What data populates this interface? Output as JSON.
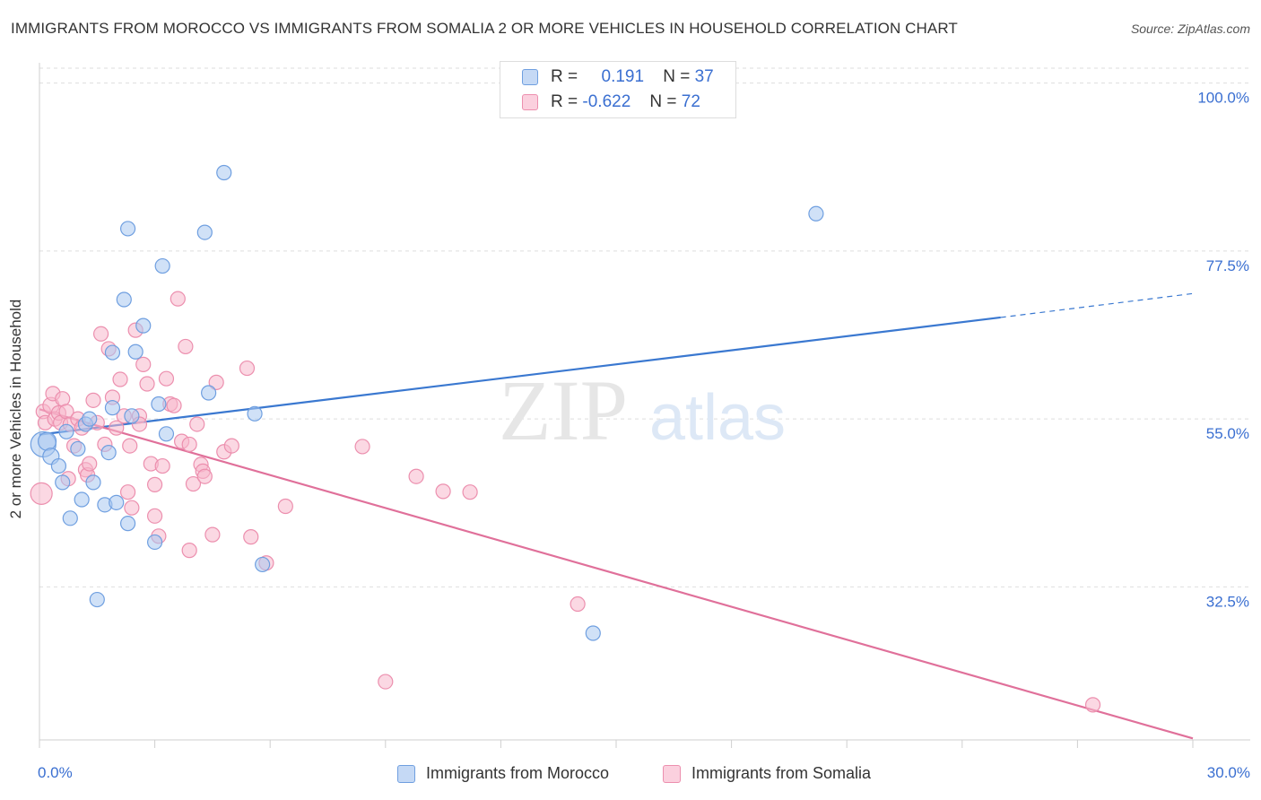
{
  "header": {
    "title": "IMMIGRANTS FROM MOROCCO VS IMMIGRANTS FROM SOMALIA 2 OR MORE VEHICLES IN HOUSEHOLD CORRELATION CHART",
    "source": "Source: ZipAtlas.com"
  },
  "watermark": {
    "zip": "ZIP",
    "atlas": "atlas"
  },
  "legend": {
    "morocco": {
      "r_label": "R =",
      "r_value": "0.191",
      "n_label": "N =",
      "n_value": "37"
    },
    "somalia": {
      "r_label": "R =",
      "r_value": "-0.622",
      "n_label": "N =",
      "n_value": "72"
    }
  },
  "colors": {
    "morocco_fill": "#aac8f0",
    "morocco_stroke": "#6f9fe0",
    "morocco_line": "#3a78d0",
    "somalia_fill": "#f7b8cc",
    "somalia_stroke": "#ec8fae",
    "somalia_line": "#e0709a",
    "axis_text": "#3a6fd1"
  },
  "chart_data": {
    "type": "scatter",
    "title": "IMMIGRANTS FROM MOROCCO VS IMMIGRANTS FROM SOMALIA 2 OR MORE VEHICLES IN HOUSEHOLD CORRELATION CHART",
    "xlabel": "",
    "ylabel": "2 or more Vehicles in Household",
    "xlim": [
      0,
      30
    ],
    "ylim": [
      12,
      102
    ],
    "x_tick_labels": [
      "0.0%",
      "30.0%"
    ],
    "y_ticks": [
      32.5,
      55.0,
      77.5,
      100.0
    ],
    "y_tick_labels": [
      "32.5%",
      "55.0%",
      "77.5%",
      "100.0%"
    ],
    "grid": true,
    "legend_position": "bottom",
    "series": [
      {
        "name": "Immigrants from Morocco",
        "r": 0.191,
        "n": 37,
        "trend": {
          "x0": 0,
          "y0": 52.9,
          "x1": 25.0,
          "y1": 68.6,
          "dash_to_x": 30.0,
          "dash_to_y": 71.8
        },
        "points": [
          [
            0.1,
            51.6,
            12
          ],
          [
            0.2,
            52.0,
            8
          ],
          [
            0.3,
            50.0,
            7
          ],
          [
            0.5,
            48.7,
            6
          ],
          [
            0.6,
            46.5,
            6
          ],
          [
            0.7,
            53.3,
            6
          ],
          [
            0.8,
            41.7,
            6
          ],
          [
            1.0,
            51.0,
            6
          ],
          [
            1.1,
            44.2,
            6
          ],
          [
            1.2,
            54.3,
            6
          ],
          [
            1.3,
            55.0,
            6
          ],
          [
            1.4,
            46.5,
            6
          ],
          [
            1.5,
            30.8,
            6
          ],
          [
            1.7,
            43.5,
            6
          ],
          [
            1.8,
            50.5,
            6
          ],
          [
            1.9,
            56.5,
            6
          ],
          [
            2.0,
            43.8,
            6
          ],
          [
            1.9,
            63.9,
            6
          ],
          [
            2.2,
            71.0,
            6
          ],
          [
            2.3,
            80.5,
            6
          ],
          [
            2.3,
            41.0,
            6
          ],
          [
            2.4,
            55.4,
            6
          ],
          [
            2.5,
            64.0,
            6
          ],
          [
            2.7,
            67.5,
            6
          ],
          [
            3.0,
            38.5,
            6
          ],
          [
            3.2,
            75.5,
            6
          ],
          [
            3.3,
            53.0,
            6
          ],
          [
            3.1,
            57.0,
            6
          ],
          [
            4.3,
            80.0,
            6
          ],
          [
            4.4,
            58.5,
            6
          ],
          [
            4.8,
            88.0,
            6
          ],
          [
            5.6,
            55.7,
            6
          ],
          [
            5.8,
            35.5,
            6
          ],
          [
            14.4,
            26.3,
            6
          ],
          [
            20.2,
            82.5,
            6
          ]
        ]
      },
      {
        "name": "Immigrants from Somalia",
        "r": -0.622,
        "n": 72,
        "trend": {
          "x0": 0,
          "y0": 56.3,
          "x1": 30.0,
          "y1": 12.2
        },
        "points": [
          [
            0.05,
            45.0,
            10
          ],
          [
            0.1,
            56.0,
            6
          ],
          [
            0.15,
            54.5,
            6
          ],
          [
            0.3,
            56.8,
            7
          ],
          [
            0.35,
            58.4,
            6
          ],
          [
            0.4,
            55.0,
            6
          ],
          [
            0.5,
            55.8,
            6
          ],
          [
            0.55,
            54.5,
            6
          ],
          [
            0.6,
            57.7,
            6
          ],
          [
            0.7,
            56.0,
            6
          ],
          [
            0.75,
            47.0,
            6
          ],
          [
            0.8,
            54.3,
            6
          ],
          [
            0.9,
            51.4,
            6
          ],
          [
            1.0,
            55.0,
            6
          ],
          [
            1.1,
            53.8,
            6
          ],
          [
            1.2,
            48.2,
            6
          ],
          [
            1.25,
            47.5,
            6
          ],
          [
            1.3,
            49.0,
            6
          ],
          [
            1.4,
            57.5,
            6
          ],
          [
            1.5,
            54.5,
            6
          ],
          [
            1.6,
            66.4,
            6
          ],
          [
            1.7,
            51.6,
            6
          ],
          [
            1.8,
            64.4,
            6
          ],
          [
            1.9,
            57.9,
            6
          ],
          [
            2.0,
            53.8,
            6
          ],
          [
            2.1,
            60.3,
            6
          ],
          [
            2.2,
            55.4,
            6
          ],
          [
            2.3,
            45.2,
            6
          ],
          [
            2.35,
            51.4,
            6
          ],
          [
            2.4,
            43.1,
            6
          ],
          [
            2.5,
            66.9,
            6
          ],
          [
            2.6,
            55.4,
            6
          ],
          [
            2.6,
            54.3,
            6
          ],
          [
            2.7,
            62.3,
            6
          ],
          [
            2.8,
            59.7,
            6
          ],
          [
            2.9,
            49.0,
            6
          ],
          [
            3.0,
            46.2,
            6
          ],
          [
            3.0,
            42.0,
            6
          ],
          [
            3.1,
            39.3,
            6
          ],
          [
            3.2,
            48.7,
            6
          ],
          [
            3.3,
            60.4,
            6
          ],
          [
            3.4,
            57.0,
            6
          ],
          [
            3.5,
            56.8,
            6
          ],
          [
            3.6,
            71.1,
            6
          ],
          [
            3.7,
            52.0,
            6
          ],
          [
            3.8,
            64.7,
            6
          ],
          [
            3.9,
            51.6,
            6
          ],
          [
            3.9,
            37.4,
            6
          ],
          [
            4.0,
            46.3,
            6
          ],
          [
            4.1,
            54.3,
            6
          ],
          [
            4.2,
            48.9,
            6
          ],
          [
            4.25,
            48.0,
            6
          ],
          [
            4.3,
            47.3,
            6
          ],
          [
            4.5,
            39.5,
            6
          ],
          [
            4.6,
            59.9,
            6
          ],
          [
            4.8,
            50.6,
            6
          ],
          [
            5.0,
            51.4,
            6
          ],
          [
            5.4,
            61.8,
            6
          ],
          [
            5.5,
            39.2,
            6
          ],
          [
            5.9,
            35.7,
            6
          ],
          [
            6.4,
            43.3,
            6
          ],
          [
            8.4,
            51.3,
            6
          ],
          [
            9.0,
            19.8,
            6
          ],
          [
            9.8,
            47.3,
            6
          ],
          [
            10.5,
            45.3,
            6
          ],
          [
            11.2,
            45.2,
            6
          ],
          [
            14.0,
            30.2,
            6
          ],
          [
            27.4,
            16.7,
            6
          ]
        ]
      }
    ]
  },
  "legend_bottom": {
    "morocco_label": "Immigrants from Morocco",
    "somalia_label": "Immigrants from Somalia"
  }
}
